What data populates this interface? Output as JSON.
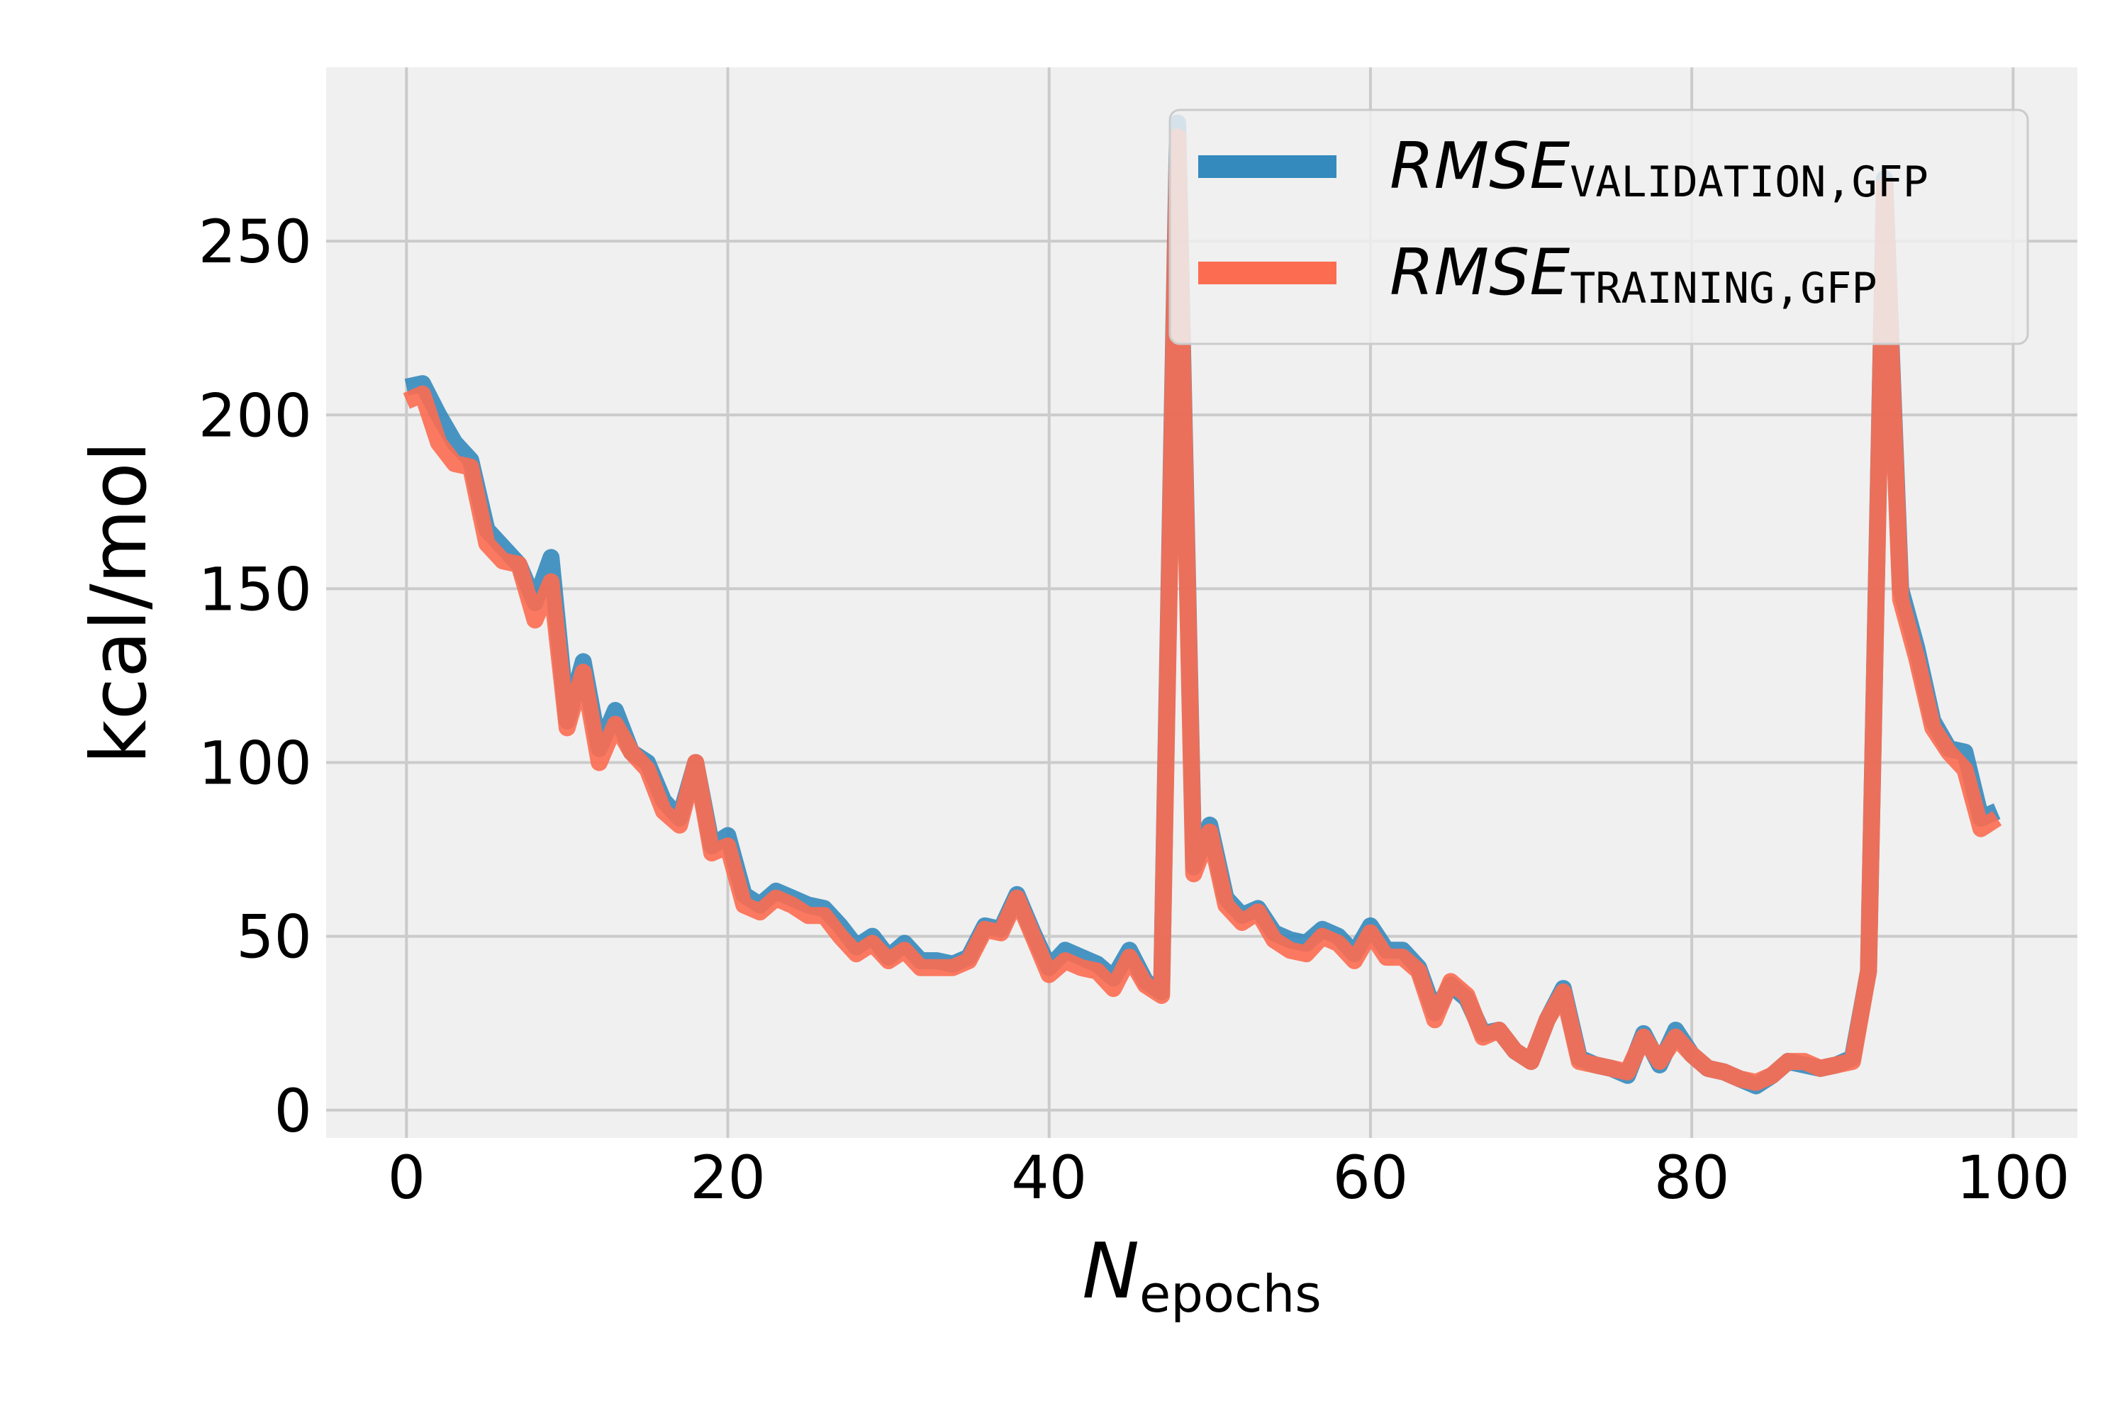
{
  "chart_data": {
    "type": "line",
    "title": "",
    "xlabel": {
      "main": "N",
      "sub": "epochs"
    },
    "ylabel": "kcal/mol",
    "xlim": [
      -5,
      104
    ],
    "ylim": [
      -8,
      300
    ],
    "xticks": [
      0,
      20,
      40,
      60,
      80,
      100
    ],
    "yticks": [
      0,
      50,
      100,
      150,
      200,
      250
    ],
    "grid": true,
    "legend_position": "top-right",
    "series": [
      {
        "name": {
          "main": "RMSE",
          "sub": "VALIDATION,GFP"
        },
        "color": "#348ABD",
        "x": [
          0,
          1,
          2,
          3,
          4,
          5,
          6,
          7,
          8,
          9,
          10,
          11,
          12,
          13,
          14,
          15,
          16,
          17,
          18,
          19,
          20,
          21,
          22,
          23,
          24,
          25,
          26,
          27,
          28,
          29,
          30,
          31,
          32,
          33,
          34,
          35,
          36,
          37,
          38,
          39,
          40,
          41,
          42,
          43,
          44,
          45,
          46,
          47,
          48,
          49,
          50,
          51,
          52,
          53,
          54,
          55,
          56,
          57,
          58,
          59,
          60,
          61,
          62,
          63,
          64,
          65,
          66,
          67,
          68,
          69,
          70,
          71,
          72,
          73,
          74,
          75,
          76,
          77,
          78,
          79,
          80,
          81,
          82,
          83,
          84,
          85,
          86,
          87,
          88,
          89,
          90,
          91,
          92,
          93,
          94,
          95,
          96,
          97,
          98,
          99
        ],
        "y": [
          208,
          209,
          200,
          192,
          187,
          167,
          162,
          157,
          146,
          159,
          112,
          129,
          104,
          115,
          103,
          100,
          89,
          84,
          100,
          76,
          79,
          62,
          59,
          63,
          61,
          59,
          58,
          53,
          47,
          50,
          44,
          48,
          43,
          43,
          42,
          44,
          53,
          52,
          62,
          51,
          41,
          46,
          44,
          42,
          38,
          46,
          37,
          34,
          284,
          70,
          82,
          61,
          56,
          58,
          51,
          49,
          48,
          52,
          50,
          45,
          53,
          46,
          46,
          41,
          28,
          36,
          32,
          22,
          23,
          17,
          14,
          26,
          35,
          15,
          13,
          12,
          10,
          22,
          13,
          23,
          16,
          12,
          11,
          9,
          7,
          10,
          14,
          13,
          12,
          13,
          15,
          40,
          268,
          150,
          133,
          112,
          104,
          103,
          84,
          86
        ]
      },
      {
        "name": {
          "main": "RMSE",
          "sub": "TRAINING,GFP"
        },
        "color": "#FC6C50",
        "x": [
          0,
          1,
          2,
          3,
          4,
          5,
          6,
          7,
          8,
          9,
          10,
          11,
          12,
          13,
          14,
          15,
          16,
          17,
          18,
          19,
          20,
          21,
          22,
          23,
          24,
          25,
          26,
          27,
          28,
          29,
          30,
          31,
          32,
          33,
          34,
          35,
          36,
          37,
          38,
          39,
          40,
          41,
          42,
          43,
          44,
          45,
          46,
          47,
          48,
          49,
          50,
          51,
          52,
          53,
          54,
          55,
          56,
          57,
          58,
          59,
          60,
          61,
          62,
          63,
          64,
          65,
          66,
          67,
          68,
          69,
          70,
          71,
          72,
          73,
          74,
          75,
          76,
          77,
          78,
          79,
          80,
          81,
          82,
          83,
          84,
          85,
          86,
          87,
          88,
          89,
          90,
          91,
          92,
          93,
          94,
          95,
          96,
          97,
          98,
          99
        ],
        "y": [
          204,
          206,
          192,
          186,
          185,
          163,
          158,
          157,
          141,
          152,
          110,
          126,
          100,
          111,
          103,
          98,
          86,
          82,
          100,
          74,
          76,
          59,
          57,
          61,
          59,
          56,
          56,
          50,
          45,
          48,
          43,
          46,
          41,
          41,
          41,
          43,
          52,
          51,
          61,
          50,
          39,
          43,
          41,
          40,
          35,
          44,
          36,
          33,
          280,
          68,
          80,
          59,
          54,
          57,
          49,
          46,
          45,
          50,
          48,
          43,
          51,
          44,
          44,
          40,
          26,
          37,
          33,
          21,
          23,
          17,
          14,
          26,
          34,
          14,
          13,
          12,
          11,
          21,
          14,
          21,
          16,
          12,
          11,
          9,
          8,
          10,
          14,
          14,
          12,
          13,
          14,
          40,
          266,
          147,
          130,
          110,
          103,
          98,
          81,
          84
        ]
      }
    ]
  }
}
